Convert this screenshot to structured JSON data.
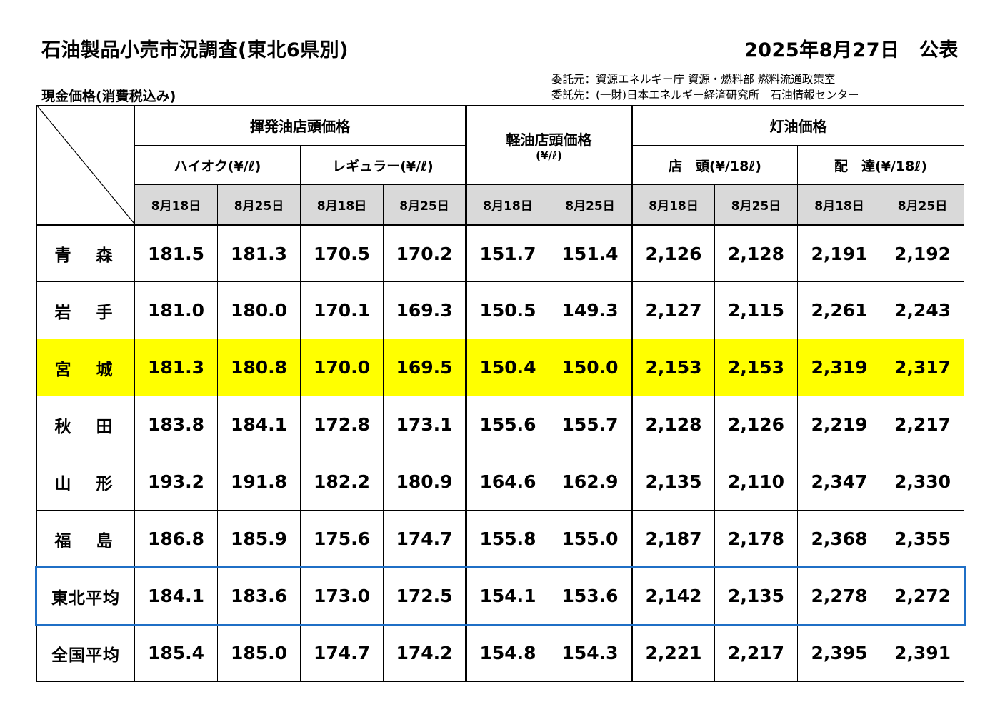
{
  "header": {
    "title": "石油製品小売市況調査(東北6県別)",
    "date": "2025年8月27日　公表",
    "subtitle": "現金価格(消費税込み)",
    "commissioner": "委託元：資源エネルギー庁 資源・燃料部 燃料流通政策室",
    "contractor": "委託先：(一財)日本エネルギー経済研究所　石油情報センター"
  },
  "table": {
    "groups": {
      "gasoline": "揮発油店頭価格",
      "diesel": "軽油店頭価格",
      "diesel_unit": "(¥/ℓ)",
      "kerosene": "灯油価格"
    },
    "subheaders": {
      "high_octane": "ハイオク(¥/ℓ)",
      "regular": "レギュラー(¥/ℓ)",
      "kerosene_store": "店　頭(¥/18ℓ)",
      "kerosene_delivery": "配　達(¥/18ℓ)"
    },
    "dates": [
      "8月18日",
      "8月25日",
      "8月18日",
      "8月25日",
      "8月18日",
      "8月25日",
      "8月18日",
      "8月25日",
      "8月18日",
      "8月25日"
    ],
    "rows": [
      {
        "region": "青　森",
        "values": [
          "181.5",
          "181.3",
          "170.5",
          "170.2",
          "151.7",
          "151.4",
          "2,126",
          "2,128",
          "2,191",
          "2,192"
        ]
      },
      {
        "region": "岩　手",
        "values": [
          "181.0",
          "180.0",
          "170.1",
          "169.3",
          "150.5",
          "149.3",
          "2,127",
          "2,115",
          "2,261",
          "2,243"
        ]
      },
      {
        "region": "宮　城",
        "values": [
          "181.3",
          "180.8",
          "170.0",
          "169.5",
          "150.4",
          "150.0",
          "2,153",
          "2,153",
          "2,319",
          "2,317"
        ]
      },
      {
        "region": "秋　田",
        "values": [
          "183.8",
          "184.1",
          "172.8",
          "173.1",
          "155.6",
          "155.7",
          "2,128",
          "2,126",
          "2,219",
          "2,217"
        ]
      },
      {
        "region": "山　形",
        "values": [
          "193.2",
          "191.8",
          "182.2",
          "180.9",
          "164.6",
          "162.9",
          "2,135",
          "2,110",
          "2,347",
          "2,330"
        ]
      },
      {
        "region": "福　島",
        "values": [
          "186.8",
          "185.9",
          "175.6",
          "174.7",
          "155.8",
          "155.0",
          "2,187",
          "2,178",
          "2,368",
          "2,355"
        ]
      },
      {
        "region": "東北平均",
        "values": [
          "184.1",
          "183.6",
          "173.0",
          "172.5",
          "154.1",
          "153.6",
          "2,142",
          "2,135",
          "2,278",
          "2,272"
        ]
      },
      {
        "region": "全国平均",
        "values": [
          "185.4",
          "185.0",
          "174.7",
          "174.2",
          "154.8",
          "154.3",
          "2,221",
          "2,217",
          "2,395",
          "2,391"
        ]
      }
    ]
  },
  "colors": {
    "highlight_row": "#ffff00",
    "average_frame": "#1f6fc6",
    "date_header_bg": "#d9d9d9"
  }
}
